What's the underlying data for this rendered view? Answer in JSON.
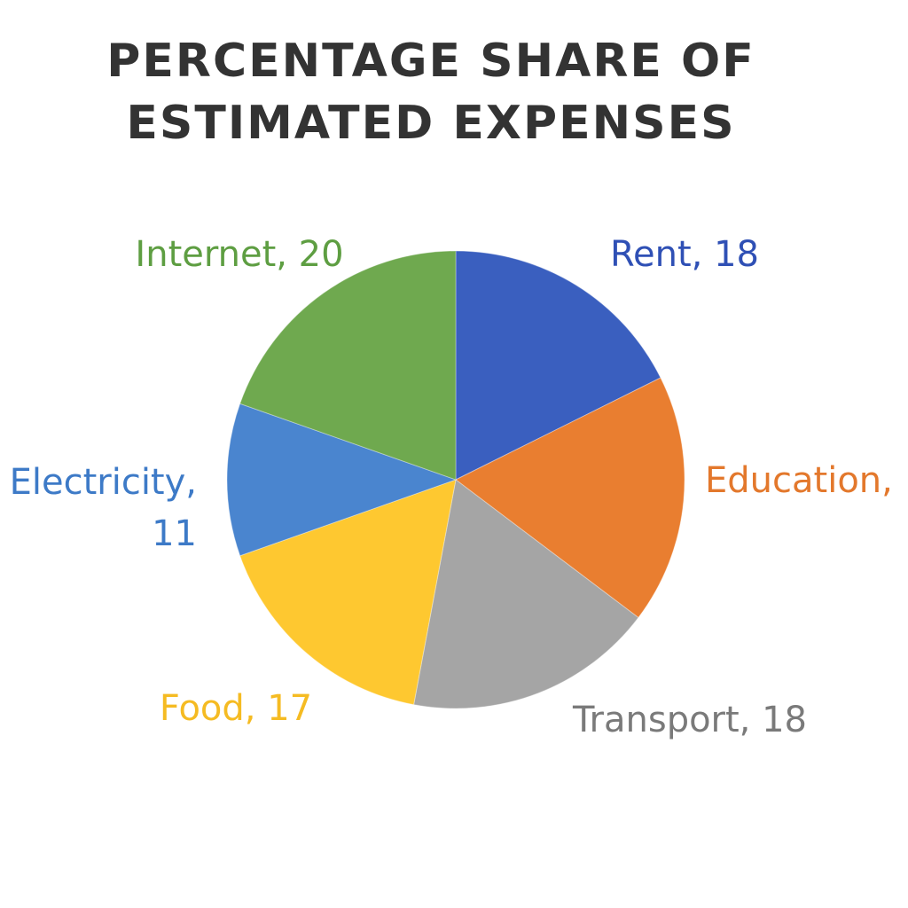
{
  "chart_data": {
    "type": "pie",
    "title": "PERCENTAGE SHARE OF\nESTIMATED EXPENSES",
    "unit": "%",
    "slices": [
      {
        "label": "Rent",
        "value": 18,
        "color": "#3a5fbf",
        "label_text": [
          "Rent, 18"
        ]
      },
      {
        "label": "Education",
        "value": 18,
        "color": "#e97e30",
        "label_text": [
          "Education,"
        ]
      },
      {
        "label": "Transport",
        "value": 18,
        "color": "#a5a5a5",
        "label_text": [
          "Transport, 18"
        ]
      },
      {
        "label": "Food",
        "value": 17,
        "color": "#fec830",
        "label_text": [
          "Food, 17"
        ]
      },
      {
        "label": "Electricity",
        "value": 11,
        "color": "#4a85cf",
        "label_text": [
          "Electricity,",
          "11"
        ]
      },
      {
        "label": "Internet",
        "value": 20,
        "color": "#6fa94f",
        "label_text": [
          "Internet, 20"
        ]
      }
    ],
    "label_colors": {
      "Rent": "#2f50b5",
      "Education": "#e3782c",
      "Transport": "#7a7a7a",
      "Food": "#f5bb22",
      "Electricity": "#3d7ac7",
      "Internet": "#5e9e42"
    },
    "legend": "none"
  }
}
